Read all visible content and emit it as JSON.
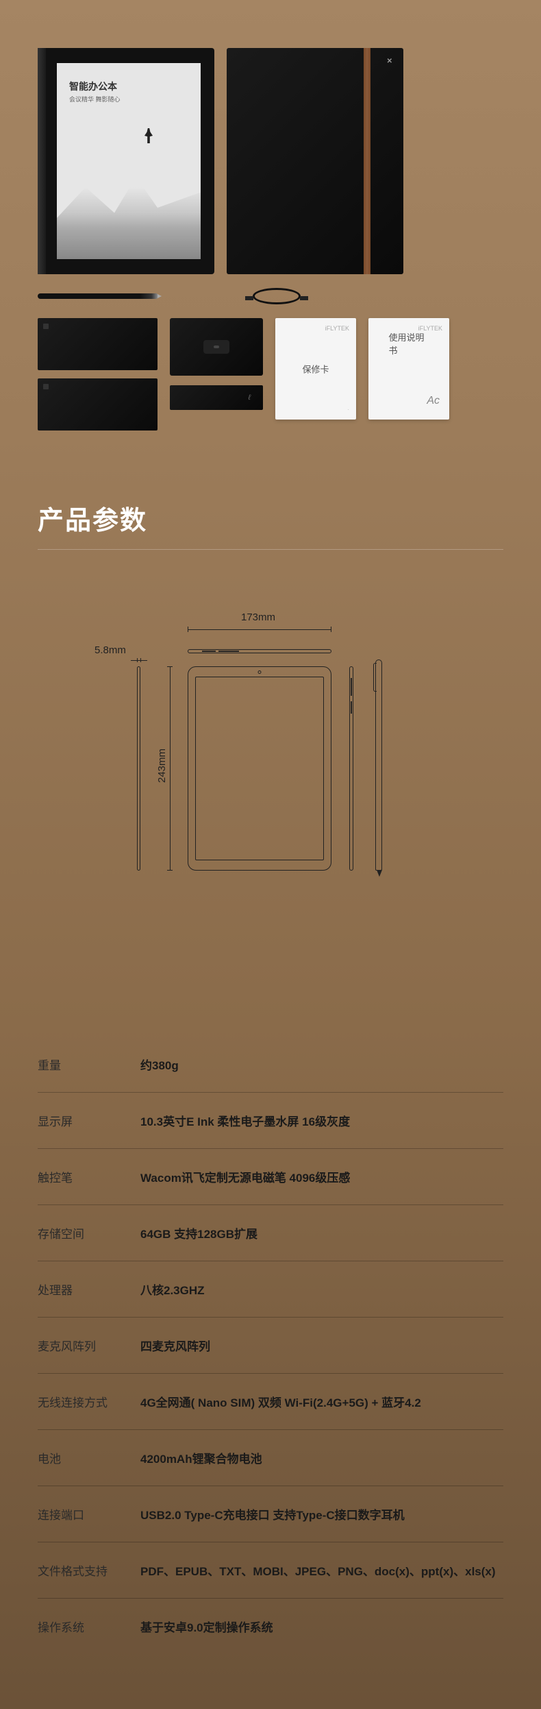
{
  "box": {
    "screen_title": "智能办公本",
    "screen_sub": "会议精华 舞影随心",
    "warranty_card": "保修卡",
    "guide_card": "使用说明书",
    "folio_logo": "✕"
  },
  "header": {
    "title": "产品参数"
  },
  "dimensions": {
    "width_label": "173mm",
    "thickness_label": "5.8mm",
    "height_label": "243mm",
    "width_mm": 173,
    "height_mm": 243,
    "thickness_mm": 5.8
  },
  "diagram_style": {
    "stroke_color": "#222222",
    "stroke_width": 1.3,
    "label_color": "#222222",
    "label_fontsize": 15,
    "background": "transparent"
  },
  "specs": [
    {
      "label": "重量",
      "value": "约380g"
    },
    {
      "label": "显示屏",
      "value": "10.3英寸E Ink 柔性电子墨水屏 16级灰度"
    },
    {
      "label": "触控笔",
      "value": "Wacom讯飞定制无源电磁笔 4096级压感"
    },
    {
      "label": "存储空间",
      "value": "64GB 支持128GB扩展"
    },
    {
      "label": "处理器",
      "value": "八核2.3GHZ"
    },
    {
      "label": "麦克风阵列",
      "value": "四麦克风阵列"
    },
    {
      "label": "无线连接方式",
      "value": "4G全网通( Nano SIM) 双频 Wi-Fi(2.4G+5G) + 蓝牙4.2"
    },
    {
      "label": "电池",
      "value": "4200mAh锂聚合物电池"
    },
    {
      "label": "连接端口",
      "value": "USB2.0 Type-C充电接口 支持Type-C接口数字耳机"
    },
    {
      "label": "文件格式支持",
      "value": "PDF、EPUB、TXT、MOBI、JPEG、PNG、doc(x)、ppt(x)、xls(x)"
    },
    {
      "label": "操作系统",
      "value": "基于安卓9.0定制操作系统"
    }
  ],
  "colors": {
    "bg_gradient_top": "#a58563",
    "bg_gradient_bottom": "#6b5238",
    "text_light": "#ffffff",
    "text_dark": "#1a1a1a",
    "divider": "rgba(0,0,0,.25)"
  }
}
